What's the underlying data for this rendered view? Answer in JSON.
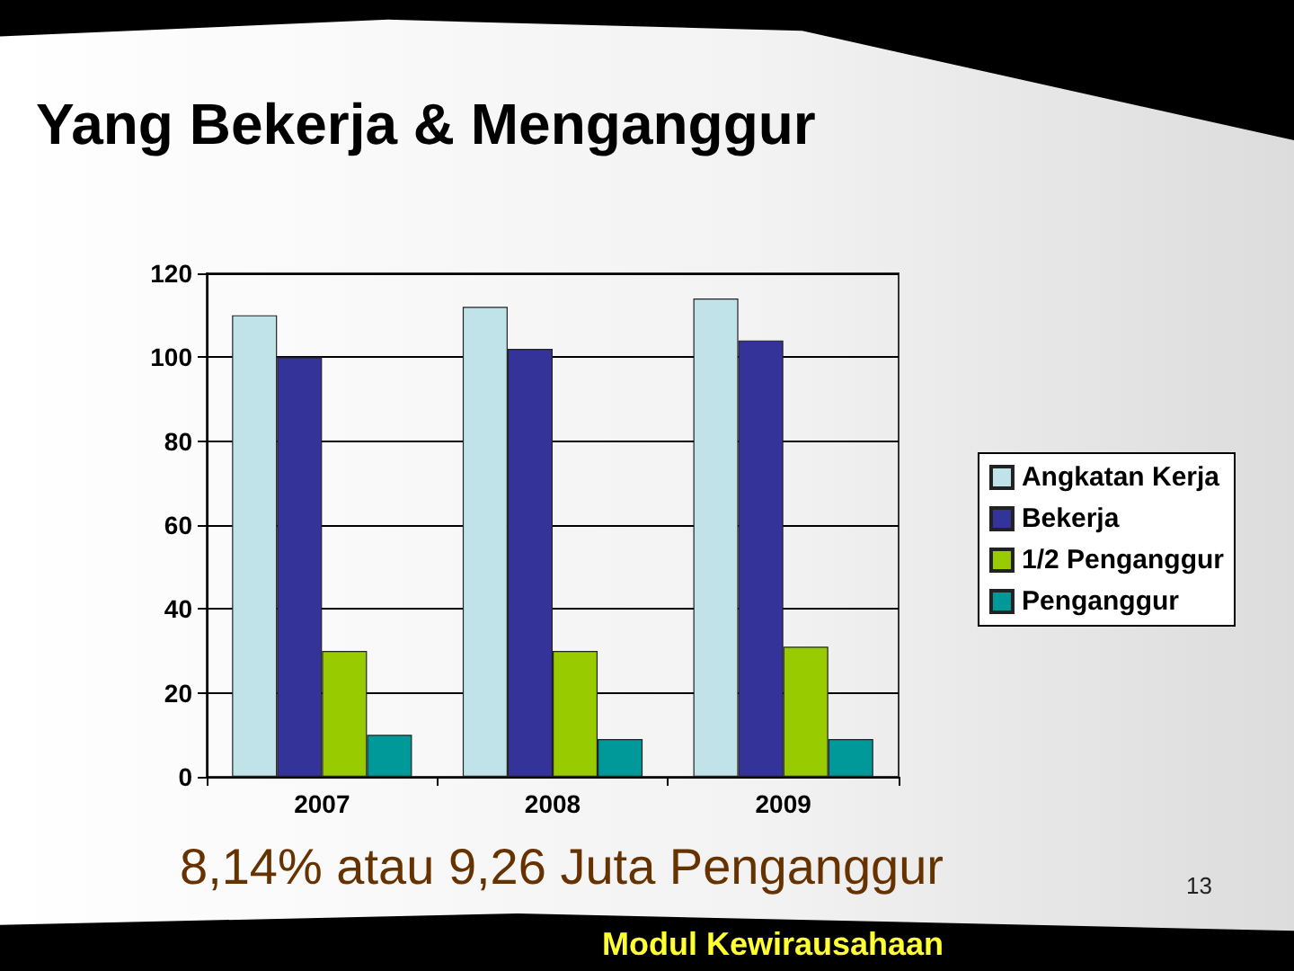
{
  "chart_data": {
    "type": "bar",
    "title": "Yang Bekerja & Menganggur",
    "categories": [
      "2007",
      "2008",
      "2009"
    ],
    "series": [
      {
        "name": "Angkatan Kerja",
        "color": "#bfe3e8",
        "values": [
          110,
          112,
          114
        ]
      },
      {
        "name": "Bekerja",
        "color": "#333399",
        "values": [
          100,
          102,
          104
        ]
      },
      {
        "name": "1/2 Penganggur",
        "color": "#99cc00",
        "values": [
          30,
          30,
          31
        ]
      },
      {
        "name": "Penganggur",
        "color": "#009999",
        "values": [
          10,
          9,
          9
        ]
      }
    ],
    "ylim": [
      0,
      120
    ],
    "yticks": [
      0,
      20,
      40,
      60,
      80,
      100,
      120
    ],
    "grid": true,
    "legend": "right",
    "annotations": [
      "8,14% atau 9,26 Juta Penganggur",
      "13",
      "Modul Kewirausahaan"
    ]
  }
}
